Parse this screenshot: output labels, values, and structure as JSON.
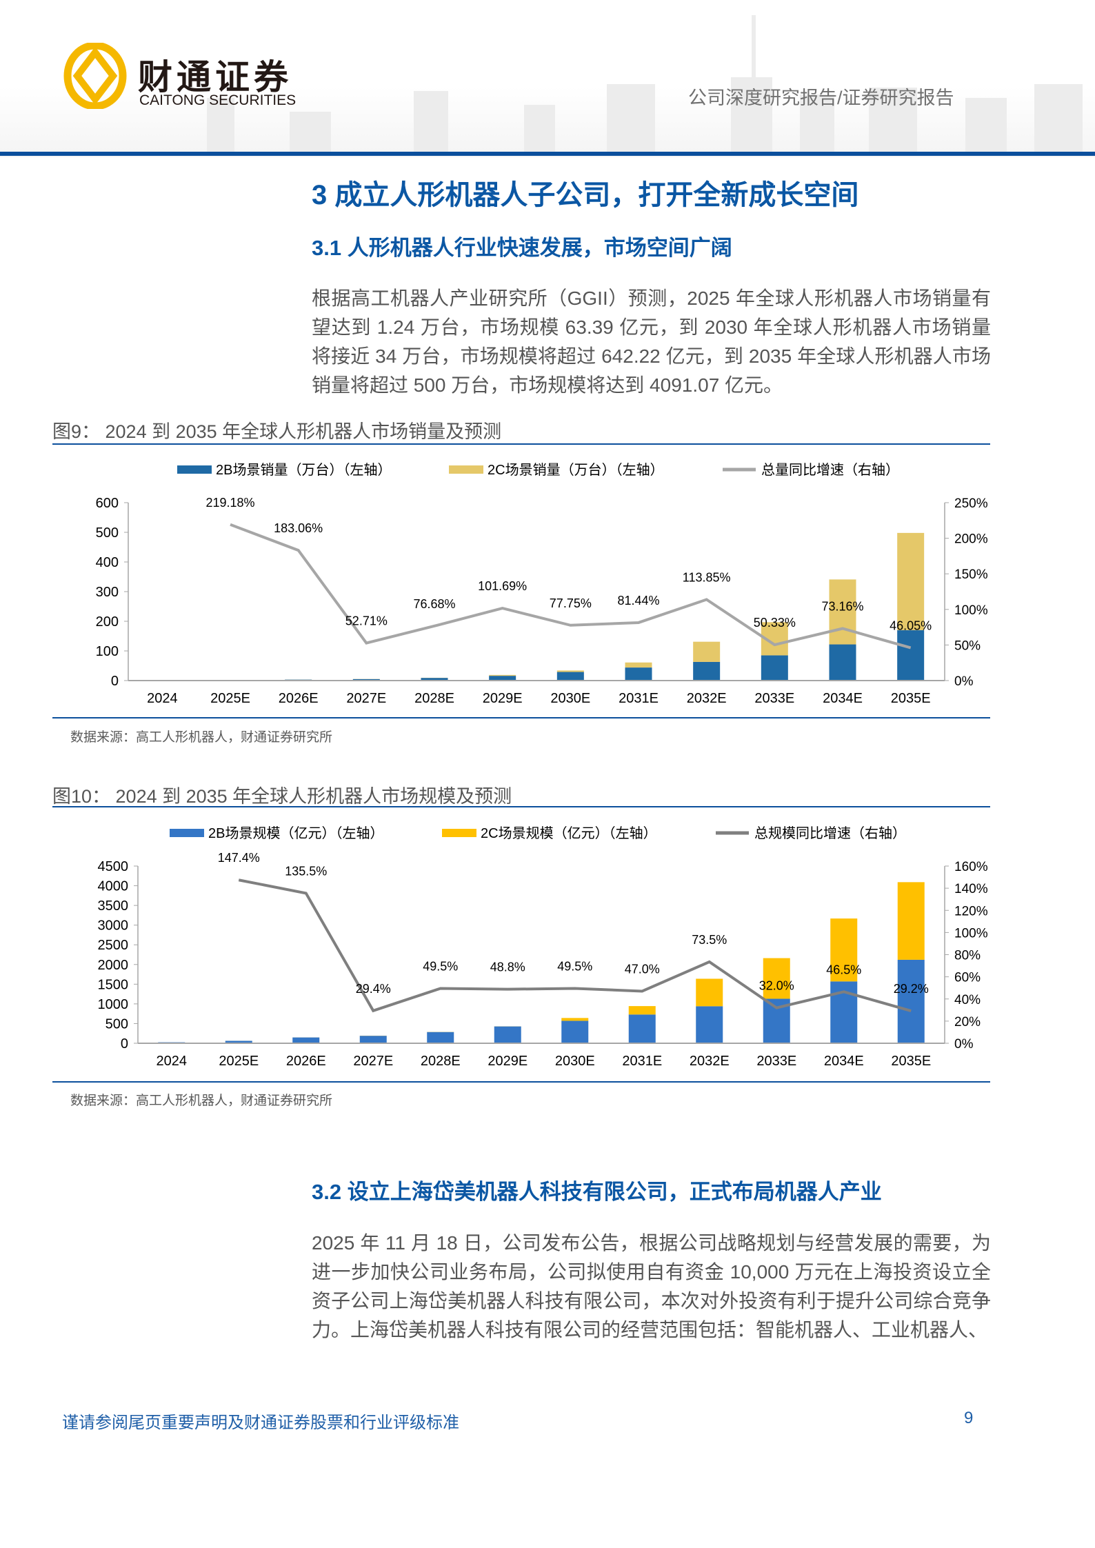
{
  "header": {
    "logo_cn": "财通证券",
    "logo_en": "CAITONG SECURITIES",
    "report_type": "公司深度研究报告/证券研究报告",
    "brand_color": "#0b4f9c",
    "logo_color": "#f5b800"
  },
  "section": {
    "title": "3   成立人形机器人子公司，打开全新成长空间",
    "sub1": "3.1   人形机器人行业快速发展，市场空间广阔",
    "para1": "根据高工机器人产业研究所（GGII）预测，2025 年全球人形机器人市场销量有望达到 1.24 万台，市场规模 63.39 亿元，到 2030 年全球人形机器人市场销量将接近 34 万台，市场规模将超过 642.22 亿元，到 2035 年全球人形机器人市场销量将超过 500 万台，市场规模将达到 4091.07 亿元。",
    "sub2": "3.2   设立上海岱美机器人科技有限公司，正式布局机器人产业",
    "para2": "2025 年 11 月 18 日，公司发布公告，根据公司战略规划与经营发展的需要，为进一步加快公司业务布局，公司拟使用自有资金 10,000 万元在上海投资设立全资子公司上海岱美机器人科技有限公司，本次对外投资有利于提升公司综合竞争力。上海岱美机器人科技有限公司的经营范围包括：智能机器人、工业机器人、"
  },
  "figures": [
    {
      "title": "图9：  2024 到 2035 年全球人形机器人市场销量及预测",
      "source": "数据来源：高工人形机器人，财通证券研究所"
    },
    {
      "title": "图10：   2024 到 2035 年全球人形机器人市场规模及预测",
      "source": "数据来源：高工人形机器人，财通证券研究所"
    }
  ],
  "chart_data": [
    {
      "type": "bar",
      "stacked": true,
      "categories": [
        "2024",
        "2025E",
        "2026E",
        "2027E",
        "2028E",
        "2029E",
        "2030E",
        "2031E",
        "2032E",
        "2033E",
        "2034E",
        "2035E"
      ],
      "series": [
        {
          "name": "2B场景销量（万台）（左轴）",
          "axis": "left",
          "type": "bar",
          "color": "#1f6aa5",
          "values": [
            0.4,
            1.2,
            3.3,
            5.0,
            9,
            16,
            29,
            44,
            63,
            85,
            122,
            170
          ]
        },
        {
          "name": "2C场景销量（万台）（左轴）",
          "axis": "left",
          "type": "bar",
          "color": "#e5c869",
          "values": [
            0,
            0.04,
            0.2,
            0.4,
            0.5,
            3,
            5,
            17,
            68,
            112,
            219,
            328
          ]
        },
        {
          "name": "总量同比增速（右轴）",
          "axis": "right",
          "type": "line",
          "color": "#a6a6a6",
          "values": [
            null,
            219.18,
            183.06,
            52.71,
            76.68,
            101.69,
            77.75,
            81.44,
            113.85,
            50.33,
            73.16,
            46.05
          ],
          "labels": [
            "",
            "219.18%",
            "183.06%",
            "52.71%",
            "76.68%",
            "101.69%",
            "77.75%",
            "81.44%",
            "113.85%",
            "50.33%",
            "73.16%",
            "46.05%"
          ]
        }
      ],
      "y_left": {
        "min": 0,
        "max": 600,
        "ticks": [
          "0",
          "100",
          "200",
          "300",
          "400",
          "500",
          "600"
        ]
      },
      "y_right": {
        "min": 0,
        "max": 250,
        "ticks": [
          "0%",
          "50%",
          "100%",
          "150%",
          "200%",
          "250%"
        ]
      },
      "legend": "top",
      "grid": false
    },
    {
      "type": "bar",
      "stacked": true,
      "categories": [
        "2024",
        "2025E",
        "2026E",
        "2027E",
        "2028E",
        "2029E",
        "2030E",
        "2031E",
        "2032E",
        "2033E",
        "2034E",
        "2035E"
      ],
      "series": [
        {
          "name": "2B场景规模（亿元）（左轴）",
          "axis": "left",
          "type": "bar",
          "color": "#3476c6",
          "values": [
            25,
            62,
            148,
            190,
            286,
            428,
            570,
            730,
            940,
            1130,
            1570,
            2120
          ]
        },
        {
          "name": "2C场景规模（亿元）（左轴）",
          "axis": "left",
          "type": "bar",
          "color": "#ffc000",
          "values": [
            0,
            1,
            1,
            3,
            3,
            2,
            72,
            214,
            698,
            1032,
            1598,
            1971
          ]
        },
        {
          "name": "总规模同比增速（右轴）",
          "axis": "right",
          "type": "line",
          "color": "#7f7f7f",
          "values": [
            null,
            147.4,
            135.5,
            29.4,
            49.5,
            48.8,
            49.5,
            47.0,
            73.5,
            32.0,
            46.5,
            29.2
          ],
          "labels": [
            "",
            "147.4%",
            "135.5%",
            "29.4%",
            "49.5%",
            "48.8%",
            "49.5%",
            "47.0%",
            "73.5%",
            "32.0%",
            "46.5%",
            "29.2%"
          ]
        }
      ],
      "y_left": {
        "min": 0,
        "max": 4500,
        "ticks": [
          "0",
          "500",
          "1000",
          "1500",
          "2000",
          "2500",
          "3000",
          "3500",
          "4000",
          "4500"
        ]
      },
      "y_right": {
        "min": 0,
        "max": 160,
        "ticks": [
          "0%",
          "20%",
          "40%",
          "60%",
          "80%",
          "100%",
          "120%",
          "140%",
          "160%"
        ]
      },
      "legend": "top",
      "grid": false
    }
  ],
  "footer": {
    "disclaimer": "谨请参阅尾页重要声明及财通证券股票和行业评级标准",
    "page": "9"
  }
}
